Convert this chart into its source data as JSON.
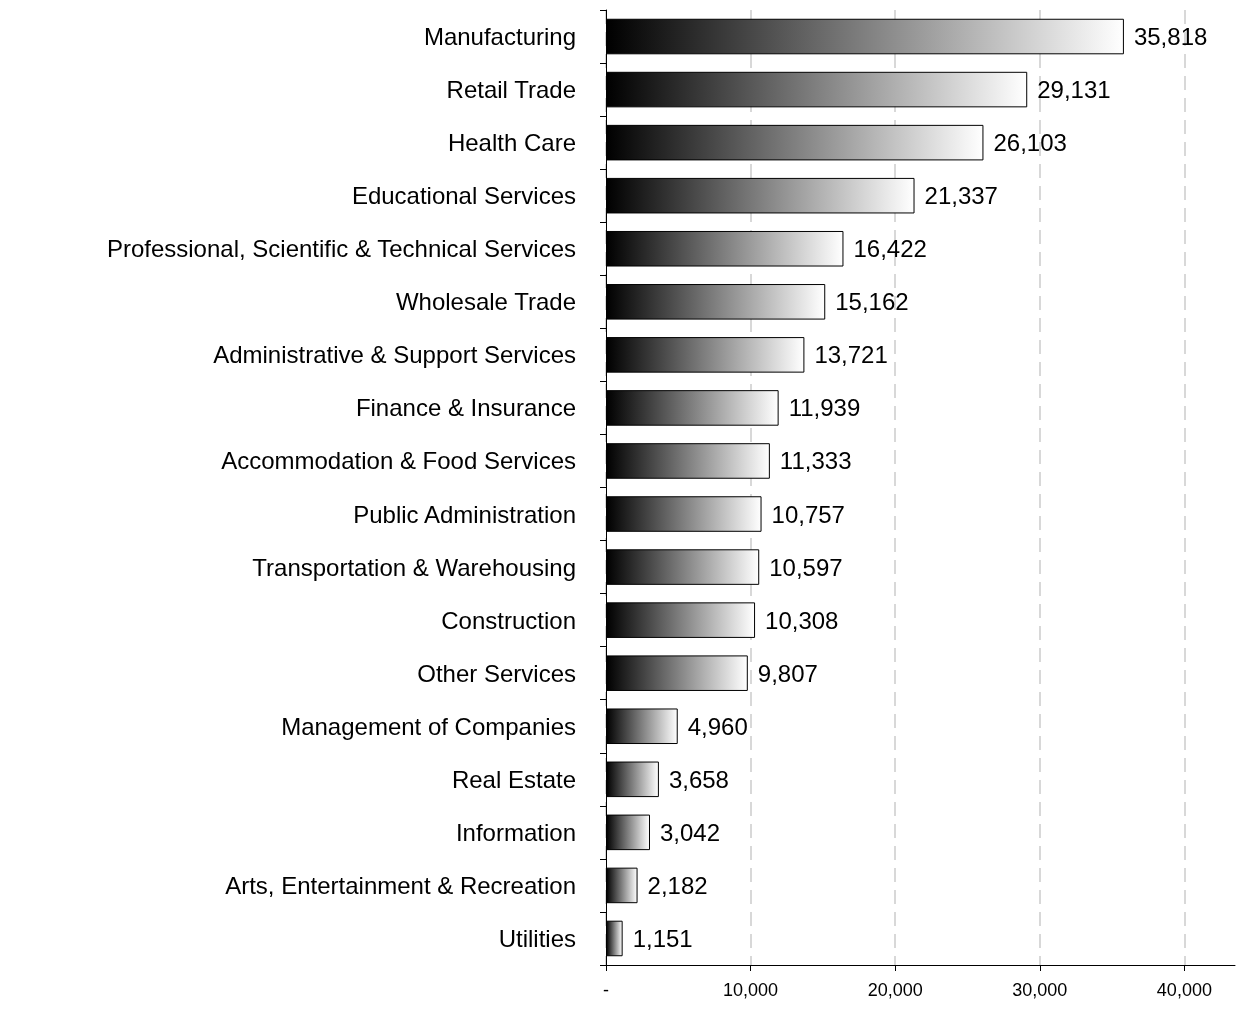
{
  "chart_data": {
    "type": "bar",
    "orientation": "horizontal",
    "categories": [
      "Manufacturing",
      "Retail Trade",
      "Health Care",
      "Educational Services",
      "Professional, Scientific & Technical Services",
      "Wholesale Trade",
      "Administrative & Support Services",
      "Finance & Insurance",
      "Accommodation & Food Services",
      "Public Administration",
      "Transportation & Warehousing",
      "Construction",
      "Other Services",
      "Management of Companies",
      "Real Estate",
      "Information",
      "Arts, Entertainment & Recreation",
      "Utilities"
    ],
    "values": [
      35818,
      29131,
      26103,
      21337,
      16422,
      15162,
      13721,
      11939,
      11333,
      10757,
      10597,
      10308,
      9807,
      4960,
      3658,
      3042,
      2182,
      1151
    ],
    "value_labels": [
      "35,818",
      "29,131",
      "26,103",
      "21,337",
      "16,422",
      "15,162",
      "13,721",
      "11,939",
      "11,333",
      "10,757",
      "10,597",
      "10,308",
      "9,807",
      "4,960",
      "3,658",
      "3,042",
      "2,182",
      "1,151"
    ],
    "color": "#000000",
    "xlim": [
      0,
      43500
    ],
    "xticks": [
      {
        "value": 0,
        "label": "-"
      },
      {
        "value": 10000,
        "label": "10,000"
      },
      {
        "value": 20000,
        "label": "20,000"
      },
      {
        "value": 30000,
        "label": "30,000"
      },
      {
        "value": 40000,
        "label": "40,000"
      }
    ],
    "grid": "x"
  }
}
